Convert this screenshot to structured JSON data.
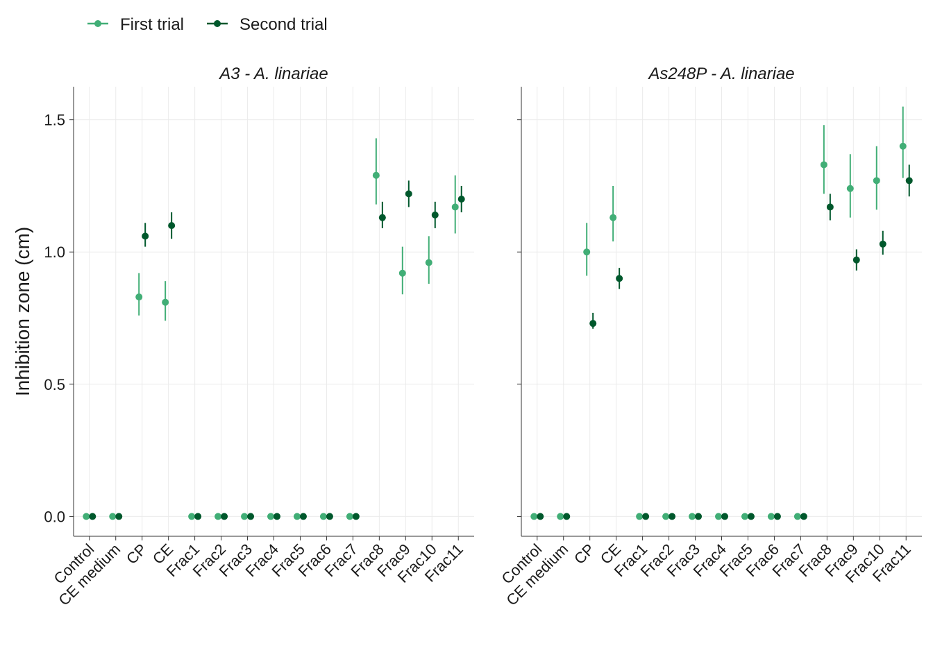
{
  "chart_data": {
    "type": "scatter",
    "ylabel": "Inhibition zone (cm)",
    "ylim": [
      -0.075,
      1.625
    ],
    "yticks": [
      0.0,
      0.5,
      1.0,
      1.5
    ],
    "ytick_labels": [
      "0.0",
      "0.5",
      "1.0",
      "1.5"
    ],
    "grid": true,
    "legend_position": "top-left",
    "categories": [
      "Control",
      "CE medium",
      "CP",
      "CE",
      "Frac1",
      "Frac2",
      "Frac3",
      "Frac4",
      "Frac5",
      "Frac6",
      "Frac7",
      "Frac8",
      "Frac9",
      "Frac10",
      "Frac11"
    ],
    "series_styles": [
      {
        "name": "First trial",
        "color": "#41ae76"
      },
      {
        "name": "Second trial",
        "color": "#00582c"
      }
    ],
    "panels": [
      {
        "title": "A3 - A. linariae",
        "series": [
          {
            "name": "First trial",
            "values": [
              0,
              0,
              0.83,
              0.81,
              0,
              0,
              0,
              0,
              0,
              0,
              0,
              1.29,
              0.92,
              0.96,
              1.17
            ],
            "lower": [
              0,
              0,
              0.76,
              0.74,
              0,
              0,
              0,
              0,
              0,
              0,
              0,
              1.18,
              0.84,
              0.88,
              1.07
            ],
            "upper": [
              0,
              0,
              0.92,
              0.89,
              0,
              0,
              0,
              0,
              0,
              0,
              0,
              1.43,
              1.02,
              1.06,
              1.29
            ]
          },
          {
            "name": "Second trial",
            "values": [
              0,
              0,
              1.06,
              1.1,
              0,
              0,
              0,
              0,
              0,
              0,
              0,
              1.13,
              1.22,
              1.14,
              1.2
            ],
            "lower": [
              0,
              0,
              1.02,
              1.05,
              0,
              0,
              0,
              0,
              0,
              0,
              0,
              1.09,
              1.17,
              1.09,
              1.15
            ],
            "upper": [
              0,
              0,
              1.11,
              1.15,
              0,
              0,
              0,
              0,
              0,
              0,
              0,
              1.19,
              1.27,
              1.19,
              1.25
            ]
          }
        ]
      },
      {
        "title": "As248P - A. linariae",
        "series": [
          {
            "name": "First trial",
            "values": [
              0,
              0,
              1.0,
              1.13,
              0,
              0,
              0,
              0,
              0,
              0,
              0,
              1.33,
              1.24,
              1.27,
              1.4
            ],
            "lower": [
              0,
              0,
              0.91,
              1.04,
              0,
              0,
              0,
              0,
              0,
              0,
              0,
              1.22,
              1.13,
              1.16,
              1.28
            ],
            "upper": [
              0,
              0,
              1.11,
              1.25,
              0,
              0,
              0,
              0,
              0,
              0,
              0,
              1.48,
              1.37,
              1.4,
              1.55
            ]
          },
          {
            "name": "Second trial",
            "values": [
              0,
              0,
              0.73,
              0.9,
              0,
              0,
              0,
              0,
              0,
              0,
              0,
              1.17,
              0.97,
              1.03,
              1.27
            ],
            "lower": [
              0,
              0,
              0.71,
              0.86,
              0,
              0,
              0,
              0,
              0,
              0,
              0,
              1.12,
              0.93,
              0.99,
              1.21
            ],
            "upper": [
              0,
              0,
              0.77,
              0.94,
              0,
              0,
              0,
              0,
              0,
              0,
              0,
              1.22,
              1.01,
              1.08,
              1.33
            ]
          }
        ]
      }
    ]
  }
}
